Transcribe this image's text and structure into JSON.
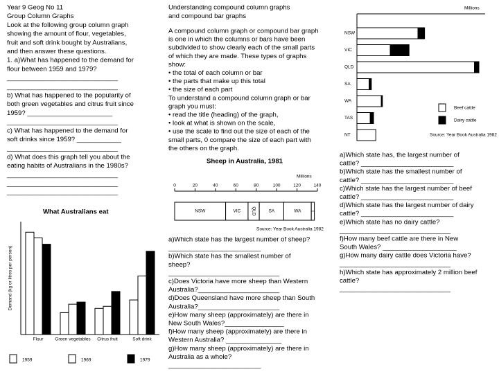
{
  "left_text": [
    "Year 9 Geog No 11",
    "Group Column Graphs",
    "Look at the following group column graph",
    "showing the amount of flour, vegetables,",
    "fruit and soft drink bought by Australians,",
    "and then answer these questions.",
    "1. a)What has happened to the demand for",
    "flour between 1959 and 1979?",
    "______________________________",
    "______________________________",
    "b) What has happened to the popularity of",
    "both green vegetables and citrus fruit since",
    "1959? _______________________",
    "______________________________",
    "c) What has happened to the demand for",
    "soft drinks since 1959? ____________",
    "______________________________",
    "d) What does this graph tell you about the",
    "eating habits of Australians in the 1980s?",
    "______________________________",
    "______________________________",
    "______________________________"
  ],
  "middle_heading": [
    "Understanding compound column graphs",
    "and compound bar graphs"
  ],
  "middle_text": [
    "A compound column graph or compound bar graph",
    "is one in which the columns or bars have been",
    "subdivided to show clearly each of the small parts",
    "of which they are made. These types of graphs",
    "show:",
    "• the total of each column or bar",
    "• the parts that make up this total",
    "• the size of each part",
    "To understand a compound column graph or bar",
    "graph you must:",
    "• read the title (heading) of the graph,",
    "• look at what is shown on the scale,",
    "• use the scale to find out the size of each of the",
    "small parts, 0 compare the size of each part with",
    "the others on the graph."
  ],
  "middle_questions": [
    "a)Which state has the largest number of sheep?",
    "_________________________",
    "b)Which state has the smallest number of",
    "sheep?",
    "______________________________",
    "c)Does Victoria have more sheep than Western",
    "Australia?______________________",
    "d)Does Queensland have more sheep than South",
    "Australia?______________________",
    "e)How many sheep (approximately) are there in",
    "New South Wales?________________",
    "f)How many sheep (approximately) are there in",
    "Western Australia? _______________",
    "g)How many sheep (approximately) are there in",
    "Australia as a whole?",
    "_________________________"
  ],
  "right_questions": [
    "a)Which state has, the largest number of",
    "cattle? _________________________",
    "b)Which state has the smallest number of",
    "cattle? _________________________",
    "c)Which state has the largest number of beef",
    "cattle? _________________________",
    "d)Which state has the largest number of dairy",
    "cattle? _________________________",
    "e)Which state has no dairy cattle?",
    "______________________________",
    "f)How many beef cattle are there in New",
    "South Wales? ____________________",
    "g)How many dairy cattle does Victoria have?",
    "______________________________",
    "h)Which state has approximately 2 million beef",
    "cattle?",
    "______________________________"
  ],
  "chart_data": [
    {
      "type": "grouped_bar",
      "title": "What Australians eat",
      "y_label": "Demand (kg or litres per person)",
      "categories": [
        "Flour",
        "Green vegetables",
        "Citrus fruit",
        "Soft drink"
      ],
      "series": [
        {
          "name": "1959",
          "color": "#ffffff",
          "values": [
            145,
            31,
            37,
            49
          ]
        },
        {
          "name": "1969",
          "color": "#ffffff",
          "values": [
            137,
            43,
            40,
            83
          ]
        },
        {
          "name": "1979",
          "color": "#000000",
          "values": [
            128,
            46,
            61,
            118
          ]
        }
      ],
      "ylim": [
        0,
        160
      ]
    },
    {
      "type": "stacked_bar",
      "title": "Sheep in Australia, 1981",
      "unit_label": "Millions",
      "xlim": [
        0,
        140
      ],
      "xticks": [
        0,
        20,
        40,
        60,
        80,
        100,
        120,
        140
      ],
      "series": [
        {
          "name": "NSW",
          "color": "#ffffff",
          "values": [
            50
          ]
        },
        {
          "name": "VIC",
          "color": "#ffffff",
          "values": [
            22
          ]
        },
        {
          "name": "QLD",
          "color": "#ffffff",
          "values": [
            11
          ]
        },
        {
          "name": "SA",
          "color": "#ffffff",
          "values": [
            24
          ]
        },
        {
          "name": "WA",
          "color": "#ffffff",
          "values": [
            27
          ]
        },
        {
          "name": "T",
          "color": "#ffffff",
          "values": [
            3
          ]
        }
      ],
      "source": "Source: Year Book Australia 1982"
    },
    {
      "type": "stacked_bar",
      "unit_label": "Millions",
      "categories": [
        "NSW",
        "VIC",
        "QLD",
        "SA",
        "WA",
        "TAS",
        "NT"
      ],
      "xlim": [
        0,
        11
      ],
      "series": [
        {
          "name": "Beef cattle",
          "color": "#ffffff",
          "values": [
            5.5,
            3.0,
            10.6,
            1.1,
            2.2,
            1.2,
            1.7
          ]
        },
        {
          "name": "Dairy cattle",
          "color": "#000000",
          "values": [
            0.6,
            1.7,
            0.4,
            0.2,
            0.1,
            0.3,
            0
          ]
        }
      ],
      "source": "Source: Year Book Australia 1982"
    }
  ]
}
